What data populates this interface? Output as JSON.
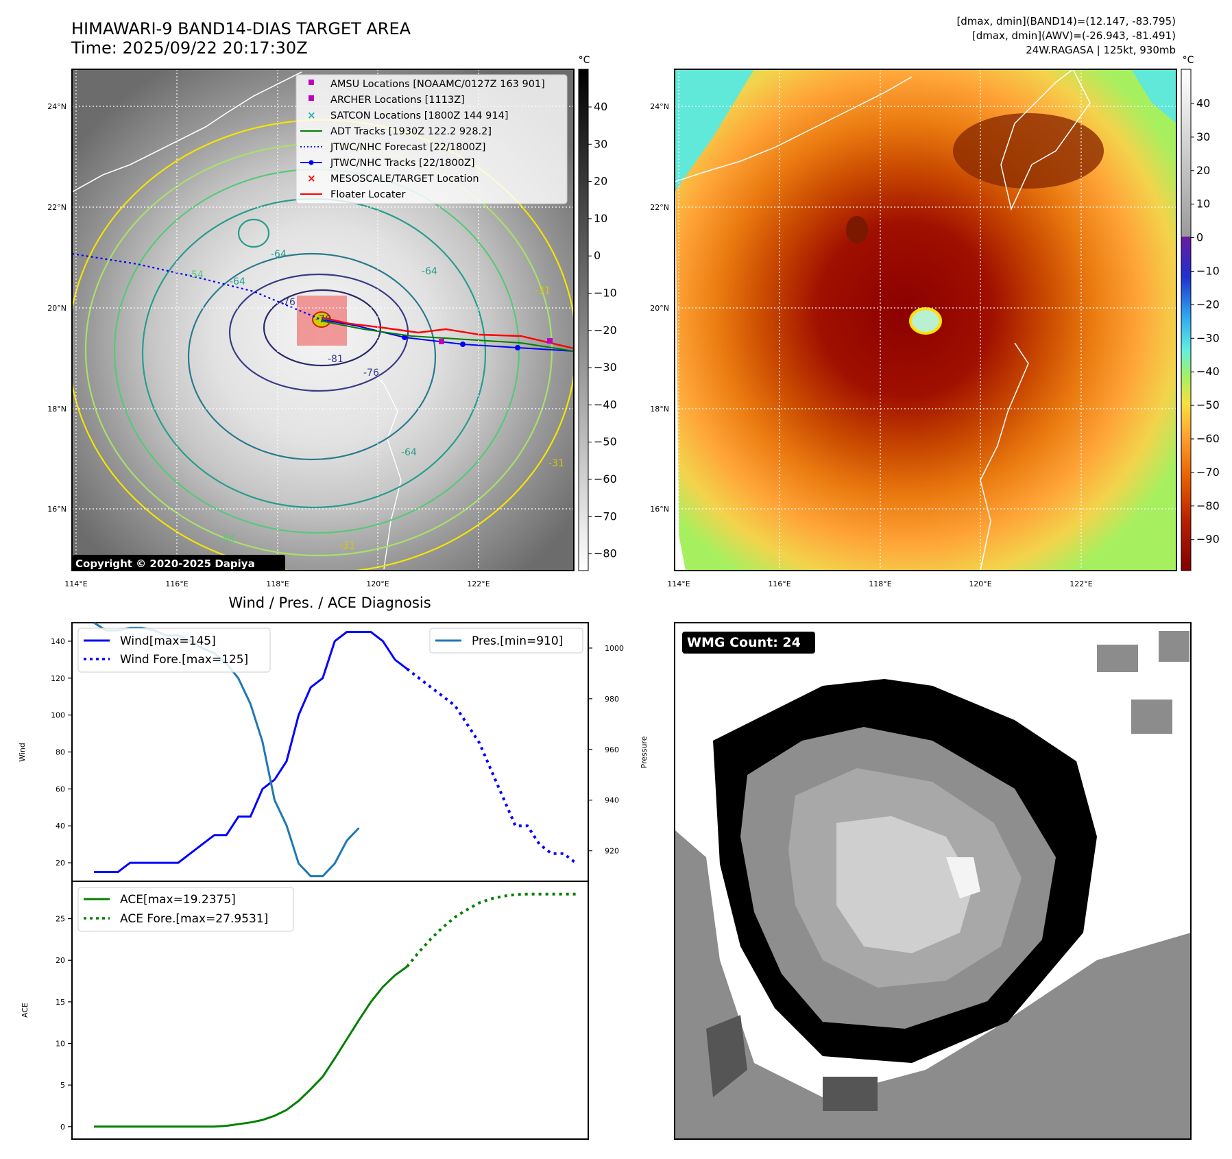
{
  "header": {
    "title_line1": "HIMAWARI-9 BAND14-DIAS TARGET AREA",
    "title_line2": "Time: 2025/09/22 20:17:30Z",
    "info_line1": "[dmax, dmin](BAND14)=(12.147, -83.795)",
    "info_line2": "[dmax, dmin](AWV)=(-26.943, -81.491)",
    "info_line3": "24W.RAGASA | 125kt, 930mb"
  },
  "map_left": {
    "lat_labels": [
      "24°N",
      "22°N",
      "20°N",
      "18°N",
      "16°N"
    ],
    "lon_labels": [
      "114°E",
      "116°E",
      "118°E",
      "120°E",
      "122°E"
    ],
    "colorbar_unit": "°C",
    "colorbar_ticks": [
      "40",
      "30",
      "20",
      "10",
      "0",
      "−10",
      "−20",
      "−30",
      "−40",
      "−50",
      "−60",
      "−70",
      "−80"
    ],
    "contour_labels": [
      "-76",
      "-81",
      "-76",
      "-64",
      "-64",
      "-54",
      "-64",
      "-31",
      "-31",
      "-54",
      "-31",
      "-76",
      "-64"
    ],
    "copyright": "Copyright © 2020-2025 Dapiya",
    "legend": [
      {
        "label": "AMSU Locations [NOAAMC/0127Z 163 901]",
        "color": "#c000c0",
        "symbol": "square"
      },
      {
        "label": "ARCHER Locations [1113Z]",
        "color": "#c000c0",
        "symbol": "square"
      },
      {
        "label": "SATCON Locations [1800Z 144 914]",
        "color": "#20b0b0",
        "symbol": "x"
      },
      {
        "label": "ADT Tracks [1930Z 122.2 928.2]",
        "color": "#008000",
        "symbol": "line"
      },
      {
        "label": "JTWC/NHC Forecast [22/1800Z]",
        "color": "#0000ff",
        "symbol": "dotted"
      },
      {
        "label": "JTWC/NHC Tracks [22/1800Z]",
        "color": "#0000ff",
        "symbol": "line-dot"
      },
      {
        "label": "MESOSCALE/TARGET Location",
        "color": "#ff0000",
        "symbol": "x"
      },
      {
        "label": "Floater Locater",
        "color": "#ff0000",
        "symbol": "line"
      }
    ]
  },
  "map_right": {
    "lat_labels": [
      "24°N",
      "22°N",
      "20°N",
      "18°N",
      "16°N"
    ],
    "lon_labels": [
      "114°E",
      "116°E",
      "118°E",
      "120°E",
      "122°E"
    ],
    "colorbar_unit": "°C",
    "colorbar_ticks": [
      "40",
      "30",
      "20",
      "10",
      "0",
      "−10",
      "−20",
      "−30",
      "−40",
      "−50",
      "−60",
      "−70",
      "−80",
      "−90"
    ]
  },
  "wmg": {
    "badge": "WMG Count: 24"
  },
  "chart_data": [
    {
      "type": "line",
      "title": "Wind / Pres. / ACE Diagnosis",
      "ylabel": "Wind",
      "y2label": "Pressure",
      "ylim": [
        10,
        150
      ],
      "y2lim": [
        908,
        1010
      ],
      "yticks": [
        20,
        40,
        60,
        80,
        100,
        120,
        140
      ],
      "y2ticks": [
        920,
        940,
        960,
        980,
        1000
      ],
      "series": [
        {
          "name": "Wind[max=145]",
          "style": "solid",
          "color": "#0000ff",
          "values": [
            15,
            15,
            15,
            20,
            20,
            20,
            20,
            20,
            25,
            30,
            35,
            35,
            45,
            45,
            60,
            65,
            75,
            100,
            115,
            120,
            140,
            145,
            145,
            145,
            140,
            130,
            125
          ]
        },
        {
          "name": "Wind Fore.[max=125]",
          "style": "dotted",
          "color": "#0000ff",
          "start_index": 26,
          "values": [
            125,
            120,
            115,
            110,
            105,
            95,
            85,
            70,
            55,
            40,
            40,
            30,
            25,
            25,
            20
          ]
        },
        {
          "name": "Pres.[min=910]",
          "style": "solid",
          "color": "#1f77b4",
          "axis": "right",
          "values": [
            1010,
            1007,
            1007,
            1008,
            1008,
            1007,
            1005,
            1005,
            1003,
            1000,
            998,
            994,
            988,
            978,
            963,
            940,
            930,
            915,
            910,
            910,
            915,
            924,
            929
          ]
        }
      ]
    },
    {
      "type": "line",
      "ylabel": "ACE",
      "ylim": [
        -1.5,
        29.5
      ],
      "yticks": [
        0,
        5,
        10,
        15,
        20,
        25
      ],
      "series": [
        {
          "name": "ACE[max=19.2375]",
          "style": "solid",
          "color": "#008000",
          "values": [
            0,
            0,
            0,
            0,
            0,
            0,
            0,
            0,
            0,
            0,
            0,
            0.1,
            0.3,
            0.5,
            0.8,
            1.3,
            2.0,
            3.1,
            4.5,
            6.0,
            8.2,
            10.5,
            12.8,
            15.0,
            16.8,
            18.2,
            19.2375
          ]
        },
        {
          "name": "ACE Fore.[max=27.9531]",
          "style": "dotted",
          "color": "#008000",
          "start_index": 26,
          "values": [
            19.2375,
            21.0,
            22.6,
            24.0,
            25.2,
            26.1,
            26.9,
            27.4,
            27.7,
            27.9,
            27.9531,
            27.9531,
            27.9531,
            27.9531,
            27.9531
          ]
        }
      ]
    }
  ]
}
